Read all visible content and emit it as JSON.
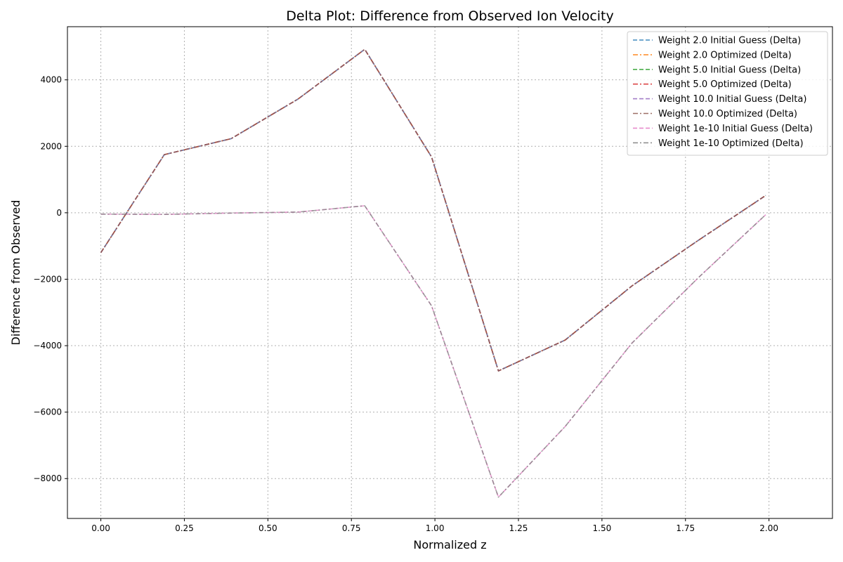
{
  "chart_data": {
    "type": "line",
    "title": "Delta Plot: Difference from Observed Ion Velocity",
    "xlabel": "Normalized z",
    "ylabel": "Difference from Observed",
    "xlim": [
      -0.1,
      2.19
    ],
    "ylim": [
      -9200,
      5600
    ],
    "xticks": [
      0.0,
      0.25,
      0.5,
      0.75,
      1.0,
      1.25,
      1.5,
      1.75,
      2.0
    ],
    "xtick_labels": [
      "0.00",
      "0.25",
      "0.50",
      "0.75",
      "1.00",
      "1.25",
      "1.50",
      "1.75",
      "2.00"
    ],
    "yticks": [
      -8000,
      -6000,
      -4000,
      -2000,
      0,
      2000,
      4000
    ],
    "ytick_labels": [
      "−8000",
      "−6000",
      "−4000",
      "−2000",
      "0",
      "2000",
      "4000"
    ],
    "grid": true,
    "legend_position": "top-right",
    "x": [
      0.0,
      0.19,
      0.39,
      0.59,
      0.79,
      0.99,
      1.19,
      1.39,
      1.59,
      1.79,
      1.99
    ],
    "series": [
      {
        "name": "Weight 2.0 Initial Guess (Delta)",
        "color": "#1f77b4",
        "dash": "dashed",
        "values": [
          -1200,
          1750,
          2230,
          3420,
          4920,
          1680,
          -4760,
          -3830,
          -2200,
          -820,
          520
        ]
      },
      {
        "name": "Weight 2.0 Optimized (Delta)",
        "color": "#ff7f0e",
        "dash": "dashdot",
        "values": [
          -1200,
          1750,
          2230,
          3420,
          4920,
          1680,
          -4760,
          -3830,
          -2200,
          -820,
          520
        ]
      },
      {
        "name": "Weight 5.0 Initial Guess (Delta)",
        "color": "#2ca02c",
        "dash": "dashed",
        "values": [
          -1200,
          1750,
          2230,
          3420,
          4920,
          1680,
          -4760,
          -3830,
          -2200,
          -820,
          520
        ]
      },
      {
        "name": "Weight 5.0 Optimized (Delta)",
        "color": "#d62728",
        "dash": "dashdot",
        "values": [
          -1200,
          1750,
          2230,
          3420,
          4920,
          1680,
          -4760,
          -3830,
          -2200,
          -820,
          520
        ]
      },
      {
        "name": "Weight 10.0 Initial Guess (Delta)",
        "color": "#9467bd",
        "dash": "dashed",
        "values": [
          -1200,
          1750,
          2230,
          3420,
          4920,
          1680,
          -4760,
          -3830,
          -2200,
          -820,
          520
        ]
      },
      {
        "name": "Weight 10.0 Optimized (Delta)",
        "color": "#8c564b",
        "dash": "dashdot",
        "values": [
          -1200,
          1750,
          2230,
          3420,
          4920,
          1680,
          -4760,
          -3830,
          -2200,
          -820,
          520
        ]
      },
      {
        "name": "Weight 1e-10 Initial Guess (Delta)",
        "color": "#e377c2",
        "dash": "dashed",
        "values": [
          -40,
          -50,
          -10,
          20,
          210,
          -2800,
          -8560,
          -6430,
          -3920,
          -1940,
          -60
        ]
      },
      {
        "name": "Weight 1e-10 Optimized (Delta)",
        "color": "#7f7f7f",
        "dash": "dashdot",
        "values": [
          -40,
          -50,
          -10,
          20,
          210,
          -2800,
          -8560,
          -6430,
          -3920,
          -1940,
          -60
        ]
      }
    ]
  }
}
